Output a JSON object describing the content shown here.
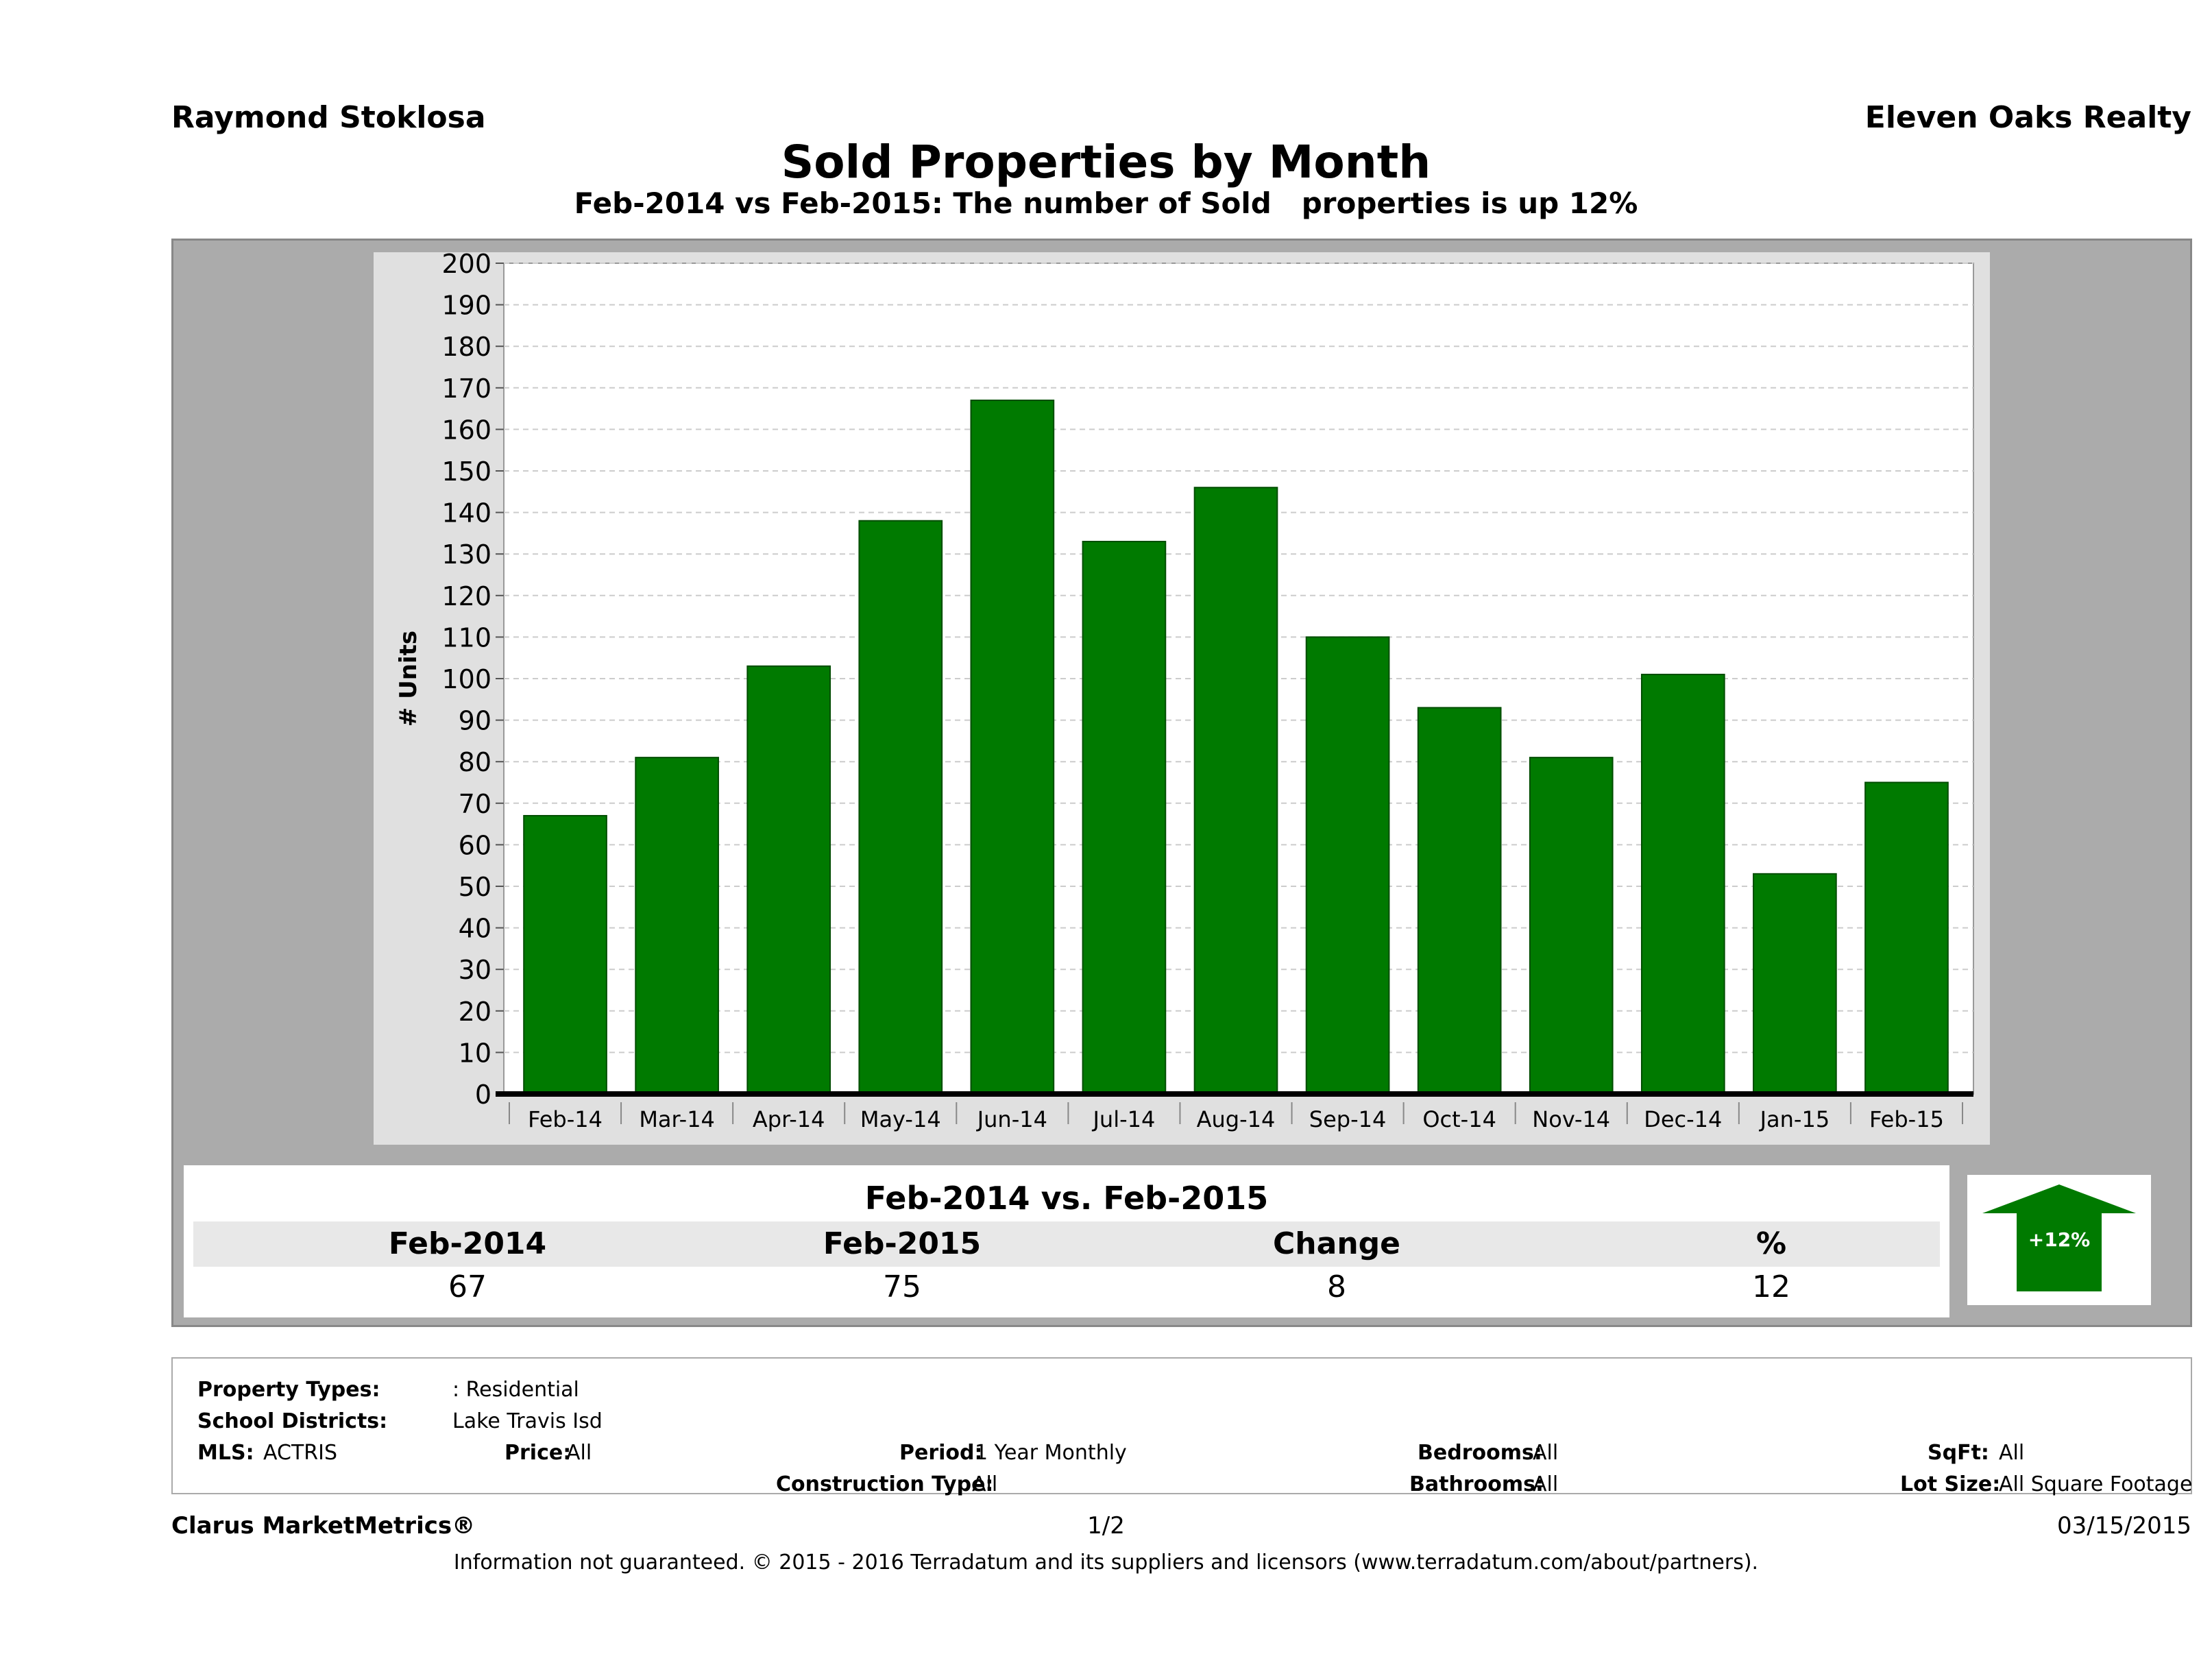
{
  "header": {
    "agent": "Raymond Stoklosa",
    "company": "Eleven Oaks Realty",
    "title": "Sold Properties by Month",
    "subtitle": "Feb-2014 vs Feb-2015: The number of Sold   properties is up 12%"
  },
  "chart_data": {
    "type": "bar",
    "categories": [
      "Feb-14",
      "Mar-14",
      "Apr-14",
      "May-14",
      "Jun-14",
      "Jul-14",
      "Aug-14",
      "Sep-14",
      "Oct-14",
      "Nov-14",
      "Dec-14",
      "Jan-15",
      "Feb-15"
    ],
    "values": [
      67,
      81,
      103,
      138,
      167,
      133,
      146,
      110,
      93,
      81,
      101,
      53,
      75
    ],
    "ylabel": "# Units",
    "xlabel": "",
    "ylim": [
      0,
      200
    ],
    "yticks": [
      0,
      10,
      20,
      30,
      40,
      50,
      60,
      70,
      80,
      90,
      100,
      110,
      120,
      130,
      140,
      150,
      160,
      170,
      180,
      190,
      200
    ],
    "bar_color": "#007a00",
    "grid": true
  },
  "comparison": {
    "title": "Feb-2014 vs. Feb-2015",
    "headers": [
      "Feb-2014",
      "Feb-2015",
      "Change",
      "%"
    ],
    "values": [
      "67",
      "75",
      "8",
      "12"
    ],
    "badge": "+12%",
    "badge_icon": "up-arrow-icon",
    "badge_color": "#007a00"
  },
  "criteria": {
    "property_types_label": "Property Types:",
    "property_types_value": ": Residential",
    "school_districts_label": "School Districts:",
    "school_districts_value": "Lake Travis Isd",
    "mls_label": "MLS:",
    "mls_value": "ACTRIS",
    "price_label": "Price:",
    "price_value": "All",
    "period_label": "Period:",
    "period_value": "1 Year Monthly",
    "construction_label": "Construction Type:",
    "construction_value": "All",
    "bedrooms_label": "Bedrooms:",
    "bedrooms_value": "All",
    "bathrooms_label": "Bathrooms:",
    "bathrooms_value": "All",
    "sqft_label": "SqFt:",
    "sqft_value": "All",
    "lotsize_label": "Lot Size:",
    "lotsize_value": "All Square Footage"
  },
  "footer": {
    "brand": "Clarus MarketMetrics®",
    "page": "1/2",
    "date": "03/15/2015",
    "disclaimer": "Information not guaranteed. © 2015 - 2016 Terradatum and its suppliers and licensors (www.terradatum.com/about/partners)."
  }
}
